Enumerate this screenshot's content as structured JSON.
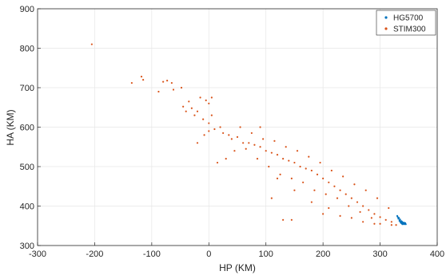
{
  "chart_data": {
    "type": "scatter",
    "title": "",
    "xlabel": "HP (KM)",
    "ylabel": "HA (KM)",
    "xlim": [
      -300,
      400
    ],
    "ylim": [
      300,
      900
    ],
    "xticks": [
      "-300",
      "-200",
      "-100",
      "0",
      "100",
      "200",
      "300",
      "400"
    ],
    "yticks": [
      "300",
      "400",
      "500",
      "600",
      "700",
      "800",
      "900"
    ],
    "grid": true,
    "legend_position": "top-right",
    "series": [
      {
        "name": "HG5700",
        "color": "#0072BD",
        "points": [
          [
            330,
            375
          ],
          [
            332,
            368
          ],
          [
            334,
            362
          ],
          [
            336,
            358
          ],
          [
            338,
            356
          ],
          [
            340,
            355
          ],
          [
            342,
            354
          ],
          [
            344,
            355
          ],
          [
            335,
            366
          ],
          [
            337,
            362
          ],
          [
            339,
            359
          ],
          [
            341,
            357
          ],
          [
            343,
            356
          ],
          [
            333,
            370
          ],
          [
            331,
            372
          ],
          [
            336,
            360
          ],
          [
            338,
            361
          ],
          [
            340,
            358
          ],
          [
            342,
            358
          ],
          [
            344,
            357
          ],
          [
            334,
            364
          ],
          [
            345,
            354
          ],
          [
            339,
            354
          ],
          [
            337,
            357
          ]
        ]
      },
      {
        "name": "STIM300",
        "color": "#D95319",
        "points": [
          [
            -205,
            810
          ],
          [
            -135,
            712
          ],
          [
            -118,
            728
          ],
          [
            -115,
            720
          ],
          [
            -80,
            715
          ],
          [
            -73,
            718
          ],
          [
            -65,
            712
          ],
          [
            -88,
            690
          ],
          [
            -62,
            695
          ],
          [
            -48,
            700
          ],
          [
            -45,
            652
          ],
          [
            -35,
            665
          ],
          [
            -30,
            648
          ],
          [
            -20,
            640
          ],
          [
            -15,
            675
          ],
          [
            -5,
            668
          ],
          [
            0,
            660
          ],
          [
            5,
            675
          ],
          [
            -40,
            640
          ],
          [
            -25,
            630
          ],
          [
            -10,
            620
          ],
          [
            0,
            610
          ],
          [
            5,
            630
          ],
          [
            -8,
            580
          ],
          [
            0,
            590
          ],
          [
            10,
            595
          ],
          [
            20,
            600
          ],
          [
            25,
            585
          ],
          [
            35,
            580
          ],
          [
            40,
            570
          ],
          [
            50,
            575
          ],
          [
            60,
            560
          ],
          [
            70,
            560
          ],
          [
            80,
            555
          ],
          [
            90,
            550
          ],
          [
            100,
            540
          ],
          [
            110,
            535
          ],
          [
            120,
            530
          ],
          [
            130,
            520
          ],
          [
            140,
            515
          ],
          [
            150,
            510
          ],
          [
            160,
            500
          ],
          [
            170,
            495
          ],
          [
            180,
            490
          ],
          [
            190,
            480
          ],
          [
            200,
            470
          ],
          [
            210,
            460
          ],
          [
            220,
            450
          ],
          [
            230,
            440
          ],
          [
            240,
            430
          ],
          [
            250,
            420
          ],
          [
            260,
            410
          ],
          [
            270,
            400
          ],
          [
            280,
            390
          ],
          [
            290,
            380
          ],
          [
            300,
            372
          ],
          [
            310,
            365
          ],
          [
            320,
            360
          ],
          [
            45,
            540
          ],
          [
            65,
            545
          ],
          [
            85,
            520
          ],
          [
            105,
            500
          ],
          [
            125,
            480
          ],
          [
            145,
            470
          ],
          [
            165,
            460
          ],
          [
            185,
            440
          ],
          [
            205,
            430
          ],
          [
            225,
            420
          ],
          [
            245,
            400
          ],
          [
            265,
            385
          ],
          [
            285,
            370
          ],
          [
            55,
            600
          ],
          [
            75,
            585
          ],
          [
            95,
            570
          ],
          [
            115,
            565
          ],
          [
            135,
            550
          ],
          [
            155,
            540
          ],
          [
            175,
            525
          ],
          [
            195,
            510
          ],
          [
            215,
            490
          ],
          [
            235,
            475
          ],
          [
            255,
            455
          ],
          [
            275,
            440
          ],
          [
            295,
            420
          ],
          [
            315,
            395
          ],
          [
            -20,
            560
          ],
          [
            30,
            520
          ],
          [
            15,
            510
          ],
          [
            90,
            600
          ],
          [
            120,
            470
          ],
          [
            150,
            440
          ],
          [
            180,
            410
          ],
          [
            210,
            395
          ],
          [
            250,
            370
          ],
          [
            290,
            355
          ],
          [
            130,
            365
          ],
          [
            145,
            365
          ],
          [
            110,
            420
          ],
          [
            200,
            380
          ],
          [
            230,
            375
          ],
          [
            270,
            360
          ],
          [
            300,
            355
          ],
          [
            320,
            352
          ],
          [
            328,
            352
          ]
        ]
      }
    ]
  }
}
